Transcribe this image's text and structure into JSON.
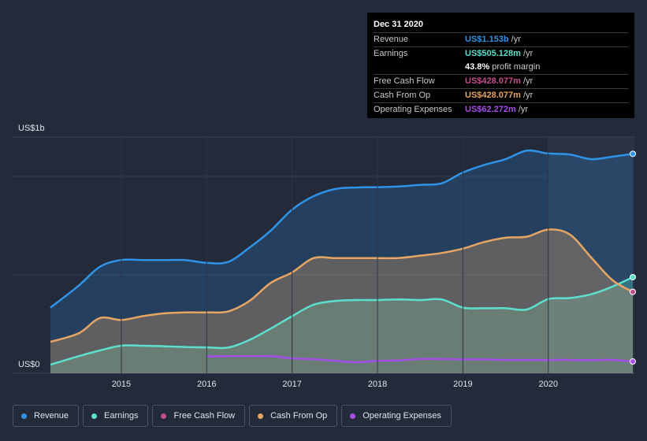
{
  "chart_data": {
    "type": "area",
    "title": "",
    "xlabel": "",
    "ylabel": "",
    "y_axis": {
      "top_label": "US$1b",
      "bottom_label": "US$0",
      "unit": "USD millions",
      "ylim": [
        0,
        1200
      ]
    },
    "x_ticks": [
      "2015",
      "2016",
      "2017",
      "2018",
      "2019",
      "2020"
    ],
    "x_tick_values": [
      2015,
      2016,
      2017,
      2018,
      2019,
      2020
    ],
    "xlim": [
      2014.17,
      2020.99
    ],
    "highlight_from": 2020.0,
    "series": [
      {
        "name": "Revenue",
        "color": "#2f93e8",
        "x": [
          2014.17,
          2014.5,
          2014.75,
          2015.0,
          2015.25,
          2015.5,
          2015.75,
          2016.0,
          2016.25,
          2016.5,
          2016.75,
          2017.0,
          2017.25,
          2017.5,
          2017.75,
          2018.0,
          2018.25,
          2018.5,
          2018.75,
          2019.0,
          2019.25,
          2019.5,
          2019.75,
          2020.0,
          2020.25,
          2020.5,
          2020.75,
          2020.99
        ],
        "values": [
          345,
          460,
          560,
          595,
          595,
          595,
          595,
          580,
          585,
          660,
          750,
          860,
          930,
          968,
          976,
          978,
          982,
          990,
          998,
          1055,
          1095,
          1125,
          1170,
          1155,
          1150,
          1125,
          1138,
          1153
        ]
      },
      {
        "name": "Earnings",
        "color": "#5ddfcd",
        "x": [
          2014.17,
          2014.5,
          2014.75,
          2015.0,
          2015.25,
          2015.5,
          2015.75,
          2016.0,
          2016.25,
          2016.5,
          2016.75,
          2017.0,
          2017.25,
          2017.5,
          2017.75,
          2018.0,
          2018.25,
          2018.5,
          2018.75,
          2019.0,
          2019.25,
          2019.5,
          2019.75,
          2020.0,
          2020.25,
          2020.5,
          2020.75,
          2020.99
        ],
        "values": [
          45,
          90,
          120,
          145,
          145,
          142,
          138,
          136,
          135,
          175,
          235,
          300,
          360,
          380,
          385,
          385,
          388,
          385,
          388,
          345,
          342,
          342,
          335,
          390,
          395,
          415,
          455,
          505
        ]
      },
      {
        "name": "Cash From Op",
        "color": "#e7a564",
        "x": [
          2014.17,
          2014.5,
          2014.75,
          2015.0,
          2015.25,
          2015.5,
          2015.75,
          2016.0,
          2016.25,
          2016.5,
          2016.75,
          2017.0,
          2017.25,
          2017.5,
          2017.75,
          2018.0,
          2018.25,
          2018.5,
          2018.75,
          2019.0,
          2019.25,
          2019.5,
          2019.75,
          2020.0,
          2020.25,
          2020.5,
          2020.75,
          2020.99
        ],
        "values": [
          165,
          210,
          290,
          280,
          300,
          315,
          320,
          320,
          325,
          380,
          475,
          530,
          605,
          605,
          605,
          605,
          606,
          618,
          632,
          655,
          690,
          712,
          718,
          755,
          730,
          610,
          490,
          428
        ]
      },
      {
        "name": "Free Cash Flow",
        "color": "#c24f8a",
        "x": [
          2020.99
        ],
        "values": [
          428
        ]
      },
      {
        "name": "Operating Expenses",
        "color": "#a64ee8",
        "x": [
          2016.0,
          2016.25,
          2016.5,
          2016.75,
          2017.0,
          2017.25,
          2017.5,
          2017.75,
          2018.0,
          2018.25,
          2018.5,
          2018.75,
          2019.0,
          2019.25,
          2019.5,
          2019.75,
          2020.0,
          2020.25,
          2020.5,
          2020.75,
          2020.99
        ],
        "values": [
          88,
          90,
          90,
          90,
          78,
          74,
          66,
          58,
          65,
          68,
          75,
          75,
          73,
          73,
          70,
          70,
          70,
          70,
          69,
          70,
          62
        ]
      }
    ]
  },
  "tooltip": {
    "date": "Dec 31 2020",
    "rows": [
      {
        "label": "Revenue",
        "value": "US$1.153b",
        "unit": "/yr",
        "color": "#2f93e8"
      },
      {
        "label": "Earnings",
        "value": "US$505.128m",
        "unit": "/yr",
        "color": "#5ddfcd"
      },
      {
        "label": "",
        "value": "43.8%",
        "unit": "profit margin",
        "color": "#ffffff"
      },
      {
        "label": "Free Cash Flow",
        "value": "US$428.077m",
        "unit": "/yr",
        "color": "#c24f8a"
      },
      {
        "label": "Cash From Op",
        "value": "US$428.077m",
        "unit": "/yr",
        "color": "#e7a564"
      },
      {
        "label": "Operating Expenses",
        "value": "US$62.272m",
        "unit": "/yr",
        "color": "#a64ee8"
      }
    ]
  },
  "legend": [
    {
      "label": "Revenue",
      "color": "#2f93e8"
    },
    {
      "label": "Earnings",
      "color": "#5ddfcd"
    },
    {
      "label": "Free Cash Flow",
      "color": "#c24f8a"
    },
    {
      "label": "Cash From Op",
      "color": "#e7a564"
    },
    {
      "label": "Operating Expenses",
      "color": "#a64ee8"
    }
  ]
}
